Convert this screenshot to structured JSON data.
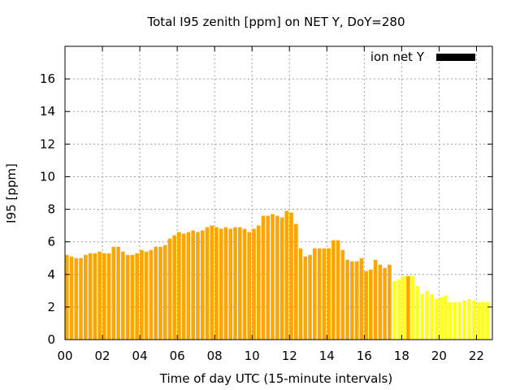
{
  "chart_data": {
    "type": "bar",
    "title": "Total I95 zenith [ppm] on NET Y, DoY=280",
    "xlabel": "Time of day UTC (15-minute intervals)",
    "ylabel": "I95 [ppm]",
    "xlim": [
      0,
      22.85
    ],
    "ylim": [
      0,
      18
    ],
    "grid": true,
    "bar_interval_hours": 0.25,
    "x_ticks": [
      {
        "value": 0,
        "label": "00"
      },
      {
        "value": 2,
        "label": "02"
      },
      {
        "value": 4,
        "label": "04"
      },
      {
        "value": 6,
        "label": "06"
      },
      {
        "value": 8,
        "label": "08"
      },
      {
        "value": 10,
        "label": "10"
      },
      {
        "value": 12,
        "label": "12"
      },
      {
        "value": 14,
        "label": "14"
      },
      {
        "value": 16,
        "label": "16"
      },
      {
        "value": 18,
        "label": "18"
      },
      {
        "value": 20,
        "label": "20"
      },
      {
        "value": 22,
        "label": "22"
      }
    ],
    "y_ticks": [
      {
        "value": 0,
        "label": "0"
      },
      {
        "value": 2,
        "label": "2"
      },
      {
        "value": 4,
        "label": "4"
      },
      {
        "value": 6,
        "label": "6"
      },
      {
        "value": 8,
        "label": "8"
      },
      {
        "value": 10,
        "label": "10"
      },
      {
        "value": 12,
        "label": "12"
      },
      {
        "value": 14,
        "label": "14"
      },
      {
        "value": 16,
        "label": "16"
      }
    ],
    "legend": {
      "label": "ion net Y",
      "color": "#000000",
      "position": "top-right"
    },
    "colors": {
      "orange": "#FFA500",
      "yellow": "#FFFF20"
    },
    "highlight": {
      "x": 18.25,
      "color": "#FFA500"
    },
    "series": [
      {
        "name": "orange",
        "color": "#FFA500",
        "x_start": 0,
        "values": [
          5.2,
          5.1,
          5.0,
          5.0,
          5.2,
          5.3,
          5.3,
          5.4,
          5.3,
          5.3,
          5.7,
          5.7,
          5.4,
          5.2,
          5.2,
          5.3,
          5.5,
          5.4,
          5.5,
          5.7,
          5.7,
          5.8,
          6.2,
          6.4,
          6.6,
          6.5,
          6.6,
          6.7,
          6.6,
          6.7,
          6.9,
          7.0,
          6.9,
          6.8,
          6.9,
          6.8,
          6.9,
          6.9,
          6.8,
          6.6,
          6.8,
          7.0,
          7.6,
          7.6,
          7.7,
          7.6,
          7.5,
          7.9,
          7.8,
          7.1,
          5.6,
          5.1,
          5.2,
          5.6,
          5.6,
          5.6,
          5.6,
          6.1,
          6.1,
          5.5,
          4.9,
          4.8,
          4.8,
          5.0,
          4.2,
          4.3,
          4.9,
          4.6,
          4.4,
          4.6
        ]
      },
      {
        "name": "yellow",
        "color": "#FFFF20",
        "x_start": 17.5,
        "values": [
          3.6,
          3.7,
          3.9,
          3.9,
          3.9,
          3.3,
          2.8,
          3.0,
          2.8,
          2.5,
          2.6,
          2.7,
          2.3,
          2.3,
          2.3,
          2.4,
          2.5,
          2.4,
          2.3,
          2.3,
          2.3
        ]
      }
    ]
  }
}
